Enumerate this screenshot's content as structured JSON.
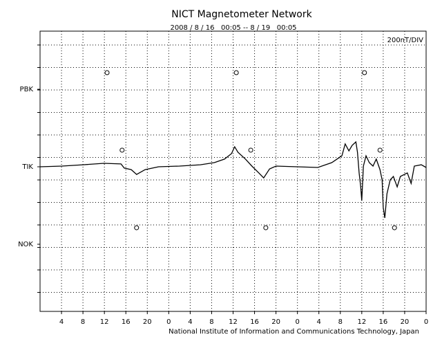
{
  "chart_data": {
    "type": "line",
    "title": "NICT Magnetometer Network",
    "subtitle": "2008 / 8 / 16   00:05 -- 8 / 19   00:05",
    "scale_label": "200nT/DIV",
    "footer": "National Institute of Information and Communications Technology, Japan",
    "xlim": [
      0,
      72
    ],
    "xticks": [
      {
        "value": 4,
        "label": "4"
      },
      {
        "value": 8,
        "label": "8"
      },
      {
        "value": 12,
        "label": "12"
      },
      {
        "value": 16,
        "label": "16"
      },
      {
        "value": 20,
        "label": "20"
      },
      {
        "value": 24,
        "label": "0"
      },
      {
        "value": 28,
        "label": "4"
      },
      {
        "value": 32,
        "label": "8"
      },
      {
        "value": 36,
        "label": "12"
      },
      {
        "value": 40,
        "label": "16"
      },
      {
        "value": 44,
        "label": "20"
      },
      {
        "value": 48,
        "label": "0"
      },
      {
        "value": 52,
        "label": "4"
      },
      {
        "value": 56,
        "label": "8"
      },
      {
        "value": 60,
        "label": "12"
      },
      {
        "value": 64,
        "label": "16"
      },
      {
        "value": 68,
        "label": "20"
      },
      {
        "value": 72,
        "label": "0"
      }
    ],
    "ylim": [
      -1169,
      1323
    ],
    "ygrid": [
      -1000,
      -800,
      -600,
      -400,
      -200,
      0,
      200,
      400,
      600,
      800,
      1000,
      1200
    ],
    "yticks": [
      {
        "value": 806,
        "label": "PBK"
      },
      {
        "value": 117,
        "label": "TIK"
      },
      {
        "value": -572,
        "label": "NOK"
      }
    ],
    "grid": true,
    "series": [
      {
        "name": "TIK",
        "color": "#000000",
        "x": [
          0,
          4.1,
          8.0,
          11.9,
          15.1,
          15.7,
          17.0,
          18.0,
          19.6,
          22.1,
          26.0,
          29.9,
          32.5,
          34.4,
          35.7,
          36.3,
          36.9,
          38.3,
          39.5,
          40.8,
          41.7,
          42.8,
          44.0,
          47.9,
          51.8,
          54.4,
          56.3,
          56.9,
          57.6,
          58.2,
          58.9,
          59.2,
          59.5,
          59.8,
          60.0,
          60.3,
          60.8,
          61.4,
          62.1,
          62.7,
          63.4,
          63.8,
          64.0,
          64.3,
          64.7,
          65.3,
          65.9,
          66.6,
          67.2,
          68.5,
          69.2,
          69.8,
          71.1,
          72.0
        ],
        "values": [
          117,
          123,
          135,
          148,
          142,
          105,
          92,
          49,
          92,
          117,
          123,
          135,
          154,
          185,
          234,
          295,
          246,
          185,
          123,
          62,
          18,
          98,
          123,
          117,
          111,
          154,
          215,
          320,
          258,
          308,
          338,
          246,
          62,
          -62,
          -185,
          123,
          215,
          154,
          123,
          185,
          92,
          0,
          -246,
          -338,
          -123,
          0,
          31,
          -62,
          31,
          62,
          -31,
          123,
          135,
          111
        ]
      }
    ],
    "markers": {
      "x": [
        12.5,
        36.6,
        60.5,
        15.3,
        39.3,
        63.4,
        18.0,
        42.1,
        66.1
      ],
      "values": [
        954,
        954,
        954,
        265,
        265,
        265,
        -425,
        -425,
        -425
      ]
    }
  }
}
